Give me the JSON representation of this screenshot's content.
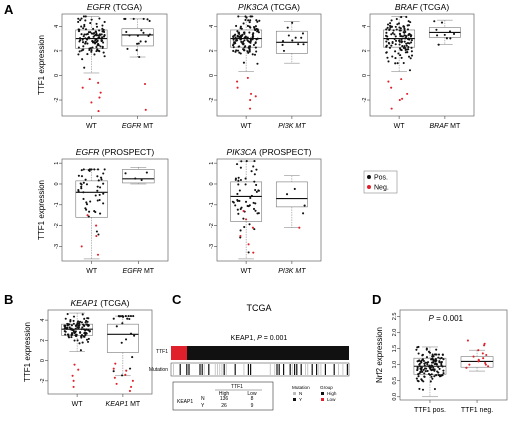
{
  "figure": {
    "panel_labels": [
      "A",
      "B",
      "C",
      "D"
    ],
    "legend": {
      "pos_label": "Pos.",
      "neg_label": "Neg.",
      "pos_color": "#111111",
      "neg_color": "#e0202a"
    }
  },
  "chart_data": [
    {
      "type": "box",
      "panel": "A",
      "title_gene": "EGFR",
      "title_suffix": " (TCGA)",
      "ylabel": "TTF1 expression",
      "ylim": [
        -3.3,
        5
      ],
      "yticks": [
        -2,
        0,
        2,
        4
      ],
      "groups": [
        {
          "label": "WT",
          "italic": false,
          "q1": 2.2,
          "median": 3.0,
          "q3": 3.7,
          "wlo": 0.2,
          "whi": 4.8,
          "n_pos": 120,
          "neg": [
            -0.6,
            -1.0,
            -1.4,
            -2.2,
            -2.9,
            -0.3,
            -1.8
          ]
        },
        {
          "label": "EGFR MT",
          "italic_prefix": "EGFR",
          "label_rest": " MT",
          "q1": 2.4,
          "median": 3.3,
          "q3": 3.8,
          "wlo": 1.5,
          "whi": 4.6,
          "n_pos": 20,
          "neg": [
            -0.7,
            -2.8
          ]
        }
      ]
    },
    {
      "type": "box",
      "panel": "A",
      "title_gene": "PIK3CA",
      "title_suffix": " (TCGA)",
      "ylim": [
        -3.3,
        5
      ],
      "yticks": [
        -2,
        0,
        2,
        4
      ],
      "groups": [
        {
          "label": "WT",
          "q1": 2.3,
          "median": 3.0,
          "q3": 3.7,
          "wlo": 0.3,
          "whi": 4.8,
          "n_pos": 125,
          "neg": [
            -0.5,
            -1.0,
            -1.5,
            -2.0,
            -2.7,
            -0.2,
            -1.7
          ]
        },
        {
          "label": "PI3K MT",
          "italic_prefix": "PI3K MT",
          "label_rest": "",
          "q1": 1.8,
          "median": 2.7,
          "q3": 3.6,
          "wlo": 1.0,
          "whi": 4.4,
          "n_pos": 12,
          "neg": []
        }
      ]
    },
    {
      "type": "box",
      "panel": "A",
      "title_gene": "BRAF",
      "title_suffix": " (TCGA)",
      "ylim": [
        -3.3,
        5
      ],
      "yticks": [
        -2,
        0,
        2,
        4
      ],
      "groups": [
        {
          "label": "WT",
          "q1": 2.3,
          "median": 3.0,
          "q3": 3.7,
          "wlo": 0.3,
          "whi": 4.8,
          "n_pos": 125,
          "neg": [
            -0.5,
            -1.0,
            -1.5,
            -2.0,
            -2.7,
            -0.3,
            -1.9
          ]
        },
        {
          "label": "BRAF MT",
          "italic_prefix": "BRAF",
          "label_rest": " MT",
          "q1": 3.1,
          "median": 3.5,
          "q3": 3.9,
          "wlo": 2.5,
          "whi": 4.5,
          "n_pos": 10,
          "neg": []
        }
      ]
    },
    {
      "type": "box",
      "panel": "A",
      "title_gene": "EGFR",
      "title_suffix": " (PROSPECT)",
      "ylabel": "TTF1 expression",
      "ylim": [
        -3.7,
        1.2
      ],
      "yticks": [
        -3,
        -2,
        -1,
        0,
        1
      ],
      "groups": [
        {
          "label": "WT",
          "q1": -1.6,
          "median": -0.4,
          "q3": 0.15,
          "wlo": -3.6,
          "whi": 0.7,
          "n_pos": 50,
          "neg": [
            -1.5,
            -2.0,
            -2.5,
            -3.0,
            -3.4
          ]
        },
        {
          "label": "EGFR MT",
          "italic_prefix": "EGFR",
          "label_rest": " MT",
          "q1": 0.05,
          "median": 0.25,
          "q3": 0.7,
          "wlo": 0.0,
          "whi": 0.8,
          "n_pos": 4,
          "neg": []
        }
      ]
    },
    {
      "type": "box",
      "panel": "A",
      "title_gene": "PIK3CA",
      "title_suffix": " (PROSPECT)",
      "ylim": [
        -3.7,
        1.2
      ],
      "yticks": [
        -3,
        -2,
        -1,
        0,
        1
      ],
      "groups": [
        {
          "label": "WT",
          "q1": -1.8,
          "median": -0.6,
          "q3": 0.1,
          "wlo": -3.6,
          "whi": 1.1,
          "n_pos": 55,
          "neg": [
            -1.7,
            -2.1,
            -2.5,
            -2.9,
            -3.3,
            -1.3
          ]
        },
        {
          "label": "PI3K MT",
          "italic_prefix": "PI3K MT",
          "label_rest": "",
          "q1": -1.1,
          "median": -0.7,
          "q3": 0.1,
          "wlo": -2.1,
          "whi": 0.4,
          "n_pos": 4,
          "neg": [
            -2.1
          ]
        }
      ]
    },
    {
      "type": "box",
      "panel": "B",
      "title_gene": "KEAP1",
      "title_suffix": " (TCGA)",
      "ylabel": "TTF1 expression",
      "ylim": [
        -3.3,
        5
      ],
      "yticks": [
        -2,
        0,
        2,
        4
      ],
      "groups": [
        {
          "label": "WT",
          "q1": 2.5,
          "median": 3.1,
          "q3": 3.6,
          "wlo": 0.9,
          "whi": 4.7,
          "n_pos": 110,
          "neg": [
            -0.4,
            -0.9,
            -2.0,
            -2.6,
            -1.5
          ]
        },
        {
          "label": "KEAP1 MT",
          "italic_prefix": "KEAP1",
          "label_rest": " MT",
          "q1": 0.8,
          "median": 2.6,
          "q3": 3.6,
          "wlo": -1.5,
          "whi": 4.4,
          "n_pos": 22,
          "neg": [
            -0.8,
            -1.4,
            -2.0,
            -2.6,
            -3.0,
            -1.0,
            -2.3,
            -0.3,
            -1.7
          ]
        }
      ]
    },
    {
      "type": "box",
      "panel": "D",
      "ylabel": "Nrf2 expression",
      "annotation_p_label": "P",
      "annotation_p_value": " = 0.001",
      "ylim": [
        -0.1,
        2.7
      ],
      "yticks": [
        0.0,
        0.5,
        1.0,
        1.5,
        2.0,
        2.5
      ],
      "groups": [
        {
          "label": "TTF1 pos.",
          "q1": 0.7,
          "median": 0.95,
          "q3": 1.2,
          "wlo": 0.0,
          "whi": 1.55,
          "n_pos": 130,
          "neg": []
        },
        {
          "label": "TTF1 neg.",
          "q1": 0.92,
          "median": 1.1,
          "q3": 1.25,
          "wlo": 0.8,
          "whi": 1.45,
          "n_pos": 0,
          "neg": [
            1.0,
            1.1,
            1.3,
            1.45,
            1.65,
            1.75,
            0.95,
            1.2,
            1.15,
            0.9,
            1.05,
            1.35,
            1.25,
            1.6,
            1.0,
            1.12
          ]
        }
      ]
    }
  ],
  "panel_c": {
    "title": "TCGA",
    "subtitle_gene": "KEAP1",
    "subtitle_p_label": "P",
    "subtitle_p_value": " = 0.001",
    "track_labels": [
      "TTF1",
      "Mutation"
    ],
    "table": {
      "header_group": "TTF1",
      "col_high": "High",
      "col_low": "Low",
      "row_gene": "KEAP1",
      "row_n": "N",
      "row_y": "Y",
      "n_high": "136",
      "n_low": "8",
      "y_high": "26",
      "y_low": "9"
    },
    "legend": {
      "mutation_title": "Mutation",
      "mutation_n": "N",
      "mutation_y": "Y",
      "group_title": "Group",
      "group_high": "High",
      "group_low": "Low"
    }
  }
}
